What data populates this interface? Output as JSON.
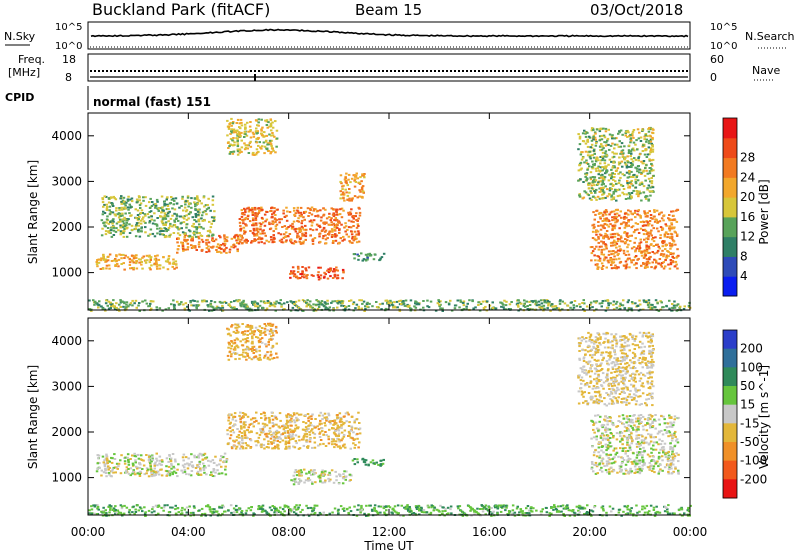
{
  "header": {
    "station": "Buckland Park (fitACF)",
    "beam": "Beam 15",
    "date": "03/Oct/2018"
  },
  "strip": {
    "nsky_label": "N.Sky",
    "nsearch_label": "N.Search",
    "noise_tick_hi": "10^5",
    "noise_tick_lo": "10^0",
    "noise_tick_hi_r": "10^5",
    "noise_tick_lo_r": "10^0",
    "freq_label_1": "Freq.",
    "freq_label_2": "[MHz]",
    "freq_tick_hi": "18",
    "freq_tick_lo": "8",
    "nave_label": "Nave",
    "nave_tick_hi": "60",
    "nave_tick_lo": "0",
    "cpid_label": "CPID",
    "cpid_text": "normal (fast) 151"
  },
  "axes": {
    "ylabel": "Slant Range [km]",
    "xlabel": "Time UT",
    "yticks": [
      "1000",
      "2000",
      "3000",
      "4000"
    ],
    "xticks": [
      "00:00",
      "04:00",
      "08:00",
      "12:00",
      "16:00",
      "20:00",
      "00:00"
    ]
  },
  "power_bar": {
    "label": "Power [dB]",
    "ticks": [
      "4",
      "8",
      "12",
      "16",
      "20",
      "24",
      "28"
    ],
    "colors": [
      "#0a1ef0",
      "#2e4bb8",
      "#2f7f66",
      "#58a35a",
      "#d7c63a",
      "#f2a72c",
      "#f27a21",
      "#ee4a19",
      "#e81616"
    ]
  },
  "velocity_bar": {
    "label": "Velocity [m s^-1]",
    "ticks": [
      "200",
      "100",
      "50",
      "15",
      "-15",
      "-50",
      "-100",
      "-200"
    ],
    "colors": [
      "#2b3ec9",
      "#2f6f9a",
      "#2f8a5a",
      "#66c53d",
      "#c8c8c8",
      "#e3b73a",
      "#f09028",
      "#f2591c",
      "#e81414"
    ]
  },
  "chart_data": {
    "type": "heatmap",
    "x_range_hours": [
      0,
      24
    ],
    "y_range_km": [
      180,
      4500
    ],
    "panels": [
      {
        "name": "power",
        "regions": [
          {
            "t0": 0.3,
            "t1": 3.5,
            "r0": 1080,
            "r1": 1420,
            "value_db": 22
          },
          {
            "t0": 3.5,
            "t1": 6.0,
            "r0": 1450,
            "r1": 1850,
            "value_db": 26
          },
          {
            "t0": 6.0,
            "t1": 10.8,
            "r0": 1650,
            "r1": 2450,
            "value_db": 27
          },
          {
            "t0": 8.0,
            "t1": 10.2,
            "r0": 870,
            "r1": 1150,
            "value_db": 29
          },
          {
            "t0": 10.5,
            "t1": 11.8,
            "r0": 1280,
            "r1": 1450,
            "value_db": 12
          },
          {
            "t0": 0.5,
            "t1": 5.0,
            "r0": 1800,
            "r1": 2700,
            "value_db": 15
          },
          {
            "t0": 5.5,
            "t1": 7.5,
            "r0": 3600,
            "r1": 4400,
            "value_db": 19
          },
          {
            "t0": 10.0,
            "t1": 11.0,
            "r0": 2600,
            "r1": 3200,
            "value_db": 23
          },
          {
            "t0": 20.0,
            "t1": 23.5,
            "r0": 1100,
            "r1": 2400,
            "value_db": 25
          },
          {
            "t0": 19.5,
            "t1": 22.5,
            "r0": 2600,
            "r1": 4200,
            "value_db": 16
          },
          {
            "t0": 0.0,
            "t1": 24.0,
            "r0": 180,
            "r1": 420,
            "value_db": 14
          }
        ]
      },
      {
        "name": "velocity",
        "regions": [
          {
            "t0": 0.3,
            "t1": 5.5,
            "r0": 1050,
            "r1": 1550,
            "value_ms": 0
          },
          {
            "t0": 5.5,
            "t1": 10.8,
            "r0": 1650,
            "r1": 2450,
            "value_ms": -30
          },
          {
            "t0": 8.0,
            "t1": 10.5,
            "r0": 870,
            "r1": 1200,
            "value_ms": 0
          },
          {
            "t0": 10.5,
            "t1": 11.8,
            "r0": 1280,
            "r1": 1450,
            "value_ms": 60
          },
          {
            "t0": 5.5,
            "t1": 7.5,
            "r0": 3600,
            "r1": 4400,
            "value_ms": -40
          },
          {
            "t0": 20.0,
            "t1": 23.5,
            "r0": 1100,
            "r1": 2400,
            "value_ms": 0
          },
          {
            "t0": 19.5,
            "t1": 22.5,
            "r0": 2600,
            "r1": 4200,
            "value_ms": -20
          },
          {
            "t0": 0.0,
            "t1": 24.0,
            "r0": 180,
            "r1": 420,
            "value_ms": 40
          }
        ]
      }
    ]
  }
}
